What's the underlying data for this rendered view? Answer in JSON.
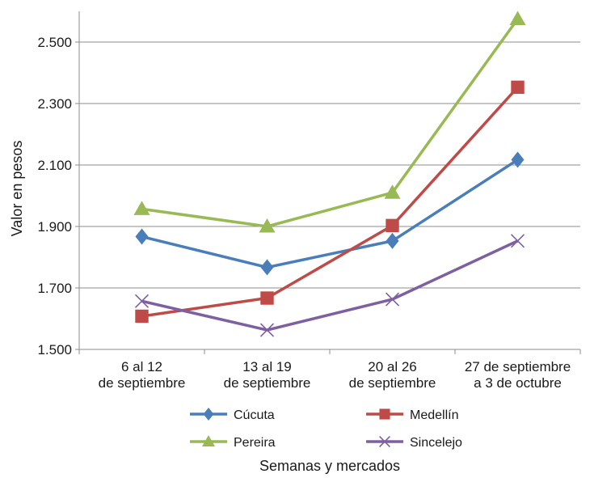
{
  "chart_data": {
    "type": "line",
    "title": "",
    "xlabel": "Semanas y mercados",
    "ylabel": "Valor en pesos",
    "ylim": [
      1500,
      2600
    ],
    "yticks": [
      1500,
      1700,
      1900,
      2100,
      2300,
      2500
    ],
    "ytick_labels": [
      "1.500",
      "1.700",
      "1.900",
      "2.100",
      "2.300",
      "2.500"
    ],
    "grid": true,
    "legend_position": "bottom",
    "categories": [
      [
        "6 al 12",
        "de septiembre"
      ],
      [
        "13 al 19",
        "de septiembre"
      ],
      [
        "20 al 26",
        "de septiembre"
      ],
      [
        "27 de septiembre",
        "a 3 de octubre"
      ]
    ],
    "series": [
      {
        "name": "Cúcuta",
        "values": [
          1867,
          1767,
          1853,
          2117
        ],
        "color": "#4a7ebb",
        "marker": "diamond"
      },
      {
        "name": "Medellín",
        "values": [
          1608,
          1667,
          1903,
          2353
        ],
        "color": "#be4b48",
        "marker": "square"
      },
      {
        "name": "Pereira",
        "values": [
          1957,
          1900,
          2010,
          2575
        ],
        "color": "#98b954",
        "marker": "triangle"
      },
      {
        "name": "Sincelejo",
        "values": [
          1657,
          1563,
          1663,
          1853
        ],
        "color": "#7d60a0",
        "marker": "x"
      }
    ]
  }
}
